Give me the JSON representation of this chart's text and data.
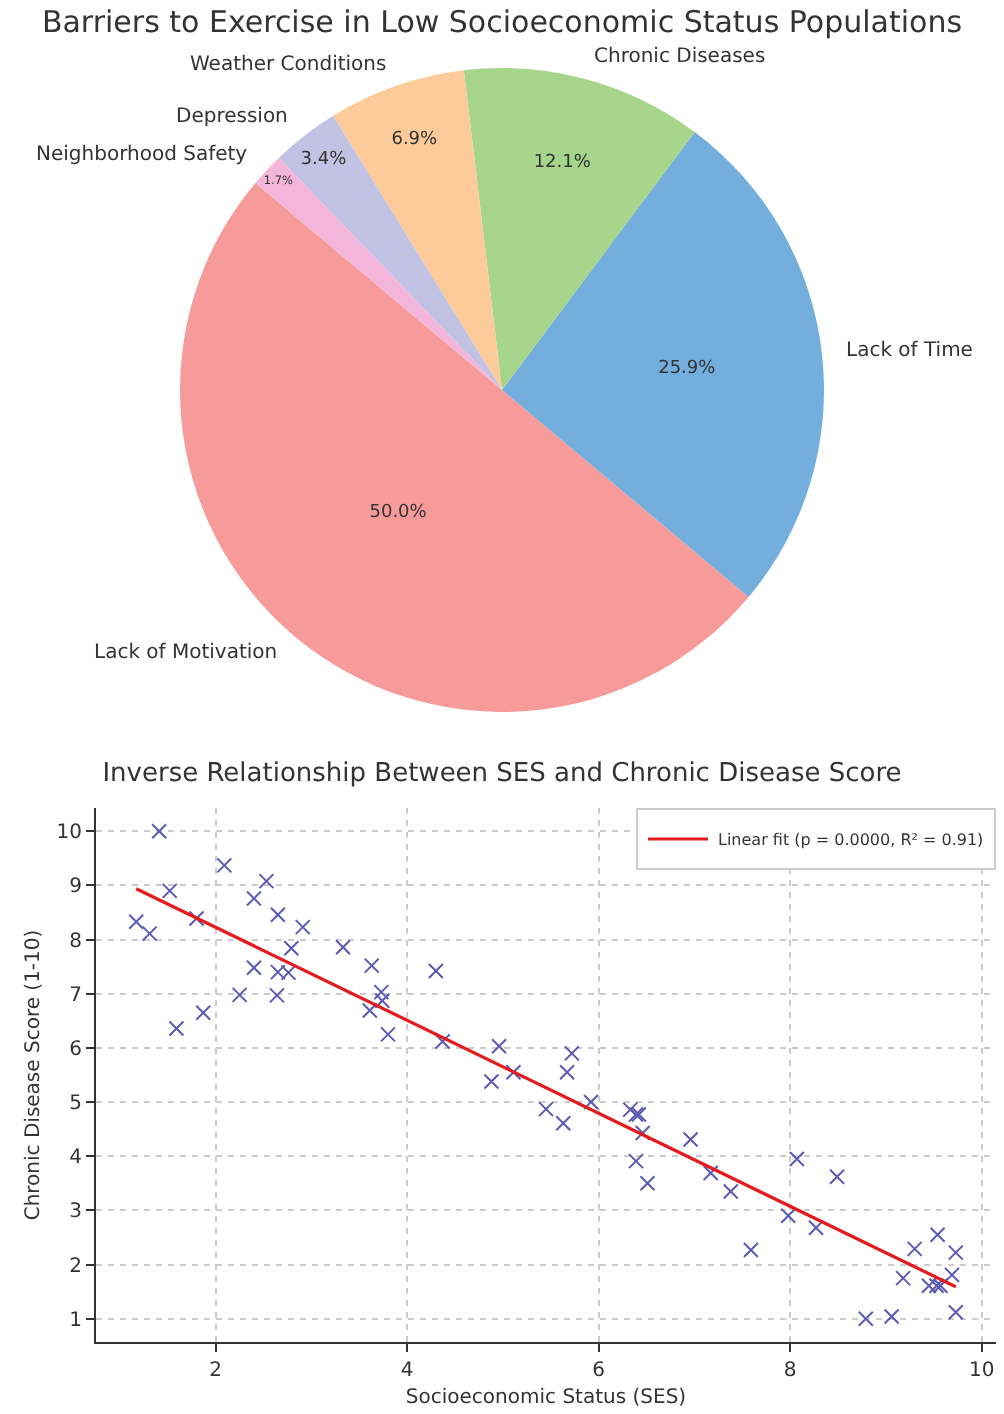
{
  "chart_data": [
    {
      "type": "pie",
      "title": "Barriers to Exercise in Low Socioeconomic Status Populations",
      "categories": [
        "Lack of Motivation",
        "Lack of Time",
        "Chronic Diseases",
        "Weather Conditions",
        "Depression",
        "Neighborhood Safety"
      ],
      "values": [
        50.0,
        25.9,
        12.1,
        6.9,
        3.4,
        1.7
      ],
      "colors": [
        "#f79a9a",
        "#73aedd",
        "#a7d58c",
        "#fccb99",
        "#c2c2e4",
        "#f3b5d9"
      ],
      "value_labels": [
        "50.0%",
        "25.9%",
        "12.1%",
        "6.9%",
        "3.4%",
        "1.7%"
      ]
    },
    {
      "type": "scatter",
      "title": "Inverse Relationship Between SES and Chronic Disease Score",
      "xlabel": "Socioeconomic Status (SES)",
      "ylabel": "Chronic Disease Score (1-10)",
      "xlim": [
        0.75,
        10.15
      ],
      "xticks": [
        2,
        4,
        6,
        8,
        10
      ],
      "ylim": [
        0.57,
        10.43
      ],
      "yticks": [
        1,
        2,
        3,
        4,
        5,
        6,
        7,
        8,
        9,
        10
      ],
      "grid": true,
      "legend": "top right",
      "series": [
        {
          "type": "scatter",
          "marker": "cross",
          "color": "#5a5ab4",
          "x": [
            1.17,
            1.31,
            1.41,
            1.52,
            1.59,
            1.8,
            1.87,
            2.09,
            2.25,
            2.4,
            2.4,
            2.53,
            2.64,
            2.65,
            2.65,
            2.76,
            2.79,
            2.91,
            3.33,
            3.63,
            3.61,
            3.73,
            3.74,
            3.8,
            4.3,
            4.37,
            4.88,
            4.96,
            5.11,
            5.45,
            5.63,
            5.67,
            5.72,
            5.92,
            6.33,
            6.39,
            6.42,
            6.46,
            6.39,
            6.51,
            6.96,
            7.17,
            7.38,
            7.59,
            7.98,
            8.07,
            8.27,
            8.49,
            8.79,
            9.06,
            9.18,
            9.3,
            9.45,
            9.53,
            9.54,
            9.57,
            9.69,
            9.73,
            9.73
          ],
          "values": [
            8.33,
            8.11,
            10.0,
            8.9,
            6.36,
            8.39,
            6.65,
            9.37,
            6.98,
            8.76,
            7.48,
            9.08,
            6.97,
            8.46,
            7.4,
            7.39,
            7.84,
            8.23,
            7.86,
            7.52,
            6.69,
            7.03,
            6.87,
            6.25,
            7.42,
            6.12,
            5.38,
            6.03,
            5.55,
            4.87,
            4.61,
            5.55,
            5.9,
            5.0,
            4.86,
            4.77,
            4.77,
            4.43,
            3.91,
            3.5,
            4.31,
            3.69,
            3.35,
            2.27,
            2.9,
            3.95,
            2.68,
            3.62,
            1.0,
            1.04,
            1.75,
            2.29,
            1.61,
            1.61,
            2.55,
            1.61,
            1.81,
            2.22,
            1.12
          ]
        },
        {
          "type": "line",
          "name": "Linear fit (p = 0.0000, R² = 0.91)",
          "color": "#e41a1c",
          "line_style": "solid",
          "x": [
            1.17,
            9.73
          ],
          "values": [
            8.94,
            1.59
          ]
        }
      ]
    }
  ]
}
